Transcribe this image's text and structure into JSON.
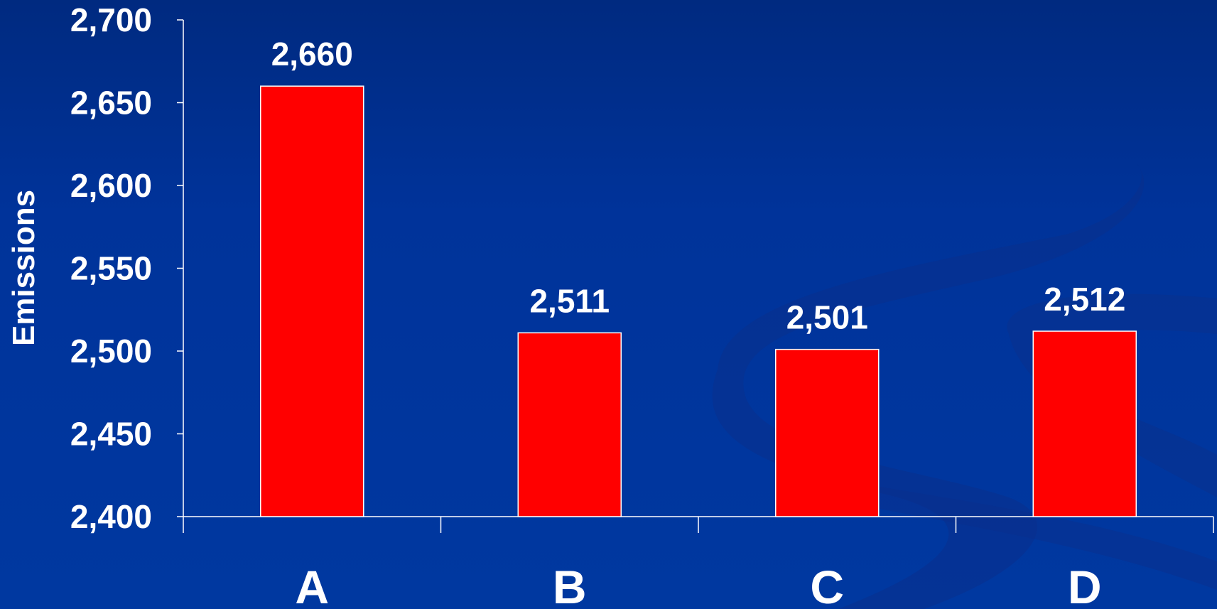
{
  "chart_data": {
    "type": "bar",
    "title": "",
    "xlabel": "",
    "ylabel": "Emissions",
    "categories": [
      "A",
      "B",
      "C",
      "D"
    ],
    "values": [
      2660,
      2511,
      2501,
      2512
    ],
    "value_labels": [
      "2,660",
      "2,511",
      "2,501",
      "2,512"
    ],
    "ylim": [
      2400,
      2700
    ],
    "yticks": [
      2400,
      2450,
      2500,
      2550,
      2600,
      2650,
      2700
    ],
    "ytick_labels": [
      "2,400",
      "2,450",
      "2,500",
      "2,550",
      "2,600",
      "2,650",
      "2,700"
    ],
    "grid": false,
    "legend": "none",
    "colors": {
      "bar_fill": "#ff0000",
      "bar_stroke": "#ffffff",
      "axis": "#ffffff",
      "text": "#ffffff",
      "background": "#003399"
    }
  }
}
